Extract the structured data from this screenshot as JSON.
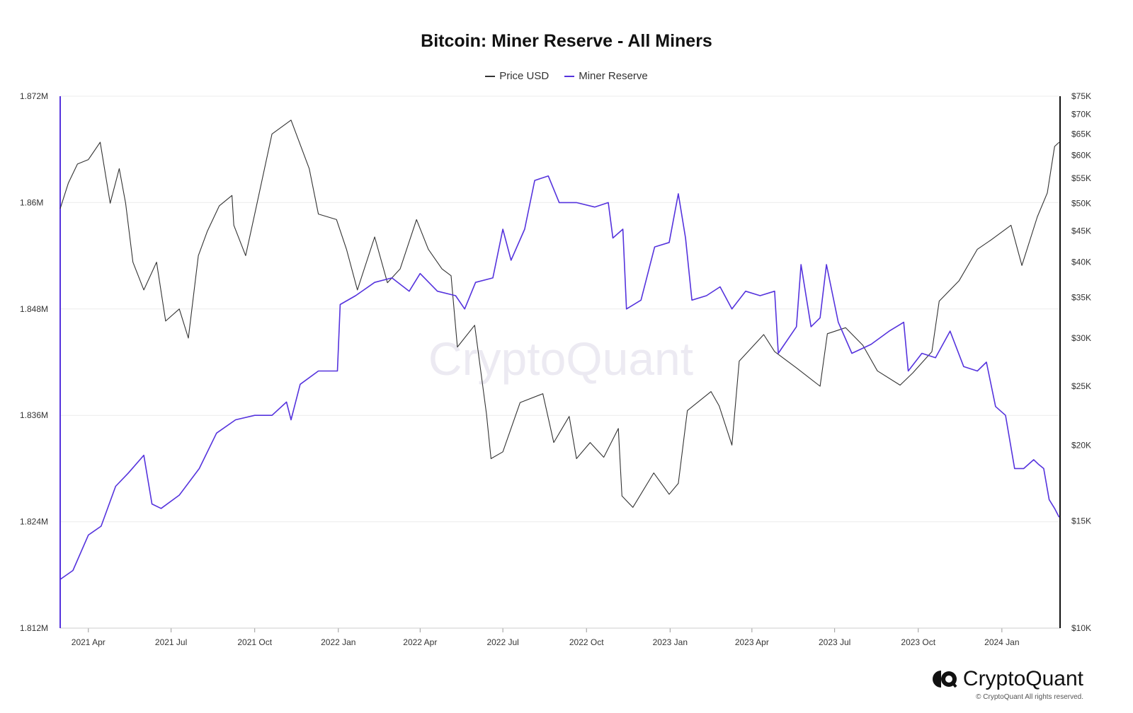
{
  "title": "Bitcoin: Miner Reserve - All Miners",
  "legend": [
    {
      "label": "Price USD",
      "color": "#333333"
    },
    {
      "label": "Miner Reserve",
      "color": "#5533dd"
    }
  ],
  "watermark": "CryptoQuant",
  "brand": {
    "name": "CryptoQuant",
    "copyright": "© CryptoQuant All rights reserved."
  },
  "chart_data": {
    "type": "line",
    "title": "Bitcoin: Miner Reserve - All Miners",
    "x_ticks": [
      "2021 Apr",
      "2021 Jul",
      "2021 Oct",
      "2022 Jan",
      "2022 Apr",
      "2022 Jul",
      "2022 Oct",
      "2023 Jan",
      "2023 Apr",
      "2023 Jul",
      "2023 Oct",
      "2024 Jan"
    ],
    "x_range": [
      "2021-03-01",
      "2024-03-05"
    ],
    "y_left": {
      "ticks": [
        "1.812M",
        "1.824M",
        "1.836M",
        "1.848M",
        "1.86M",
        "1.872M"
      ],
      "tick_values": [
        1812000,
        1824000,
        1836000,
        1848000,
        1860000,
        1872000
      ],
      "range": [
        1812000,
        1872000
      ],
      "scale": "linear"
    },
    "y_right": {
      "ticks": [
        "$10K",
        "$15K",
        "$20K",
        "$25K",
        "$30K",
        "$35K",
        "$40K",
        "$45K",
        "$50K",
        "$55K",
        "$60K",
        "$65K",
        "$70K",
        "$75K"
      ],
      "tick_values": [
        10000,
        15000,
        20000,
        25000,
        30000,
        35000,
        40000,
        45000,
        50000,
        55000,
        60000,
        65000,
        70000,
        75000
      ],
      "range": [
        10000,
        75000
      ],
      "scale": "log"
    },
    "grid": true,
    "legend_position": "top-center",
    "series": [
      {
        "name": "Price USD",
        "axis": "right",
        "color": "#333333",
        "points": [
          [
            "2021-03-01",
            49000
          ],
          [
            "2021-03-10",
            54000
          ],
          [
            "2021-03-20",
            58000
          ],
          [
            "2021-04-01",
            59000
          ],
          [
            "2021-04-14",
            63000
          ],
          [
            "2021-04-25",
            50000
          ],
          [
            "2021-05-05",
            57000
          ],
          [
            "2021-05-12",
            50000
          ],
          [
            "2021-05-20",
            40000
          ],
          [
            "2021-06-01",
            36000
          ],
          [
            "2021-06-15",
            40000
          ],
          [
            "2021-06-25",
            32000
          ],
          [
            "2021-07-10",
            33500
          ],
          [
            "2021-07-20",
            30000
          ],
          [
            "2021-07-31",
            41000
          ],
          [
            "2021-08-10",
            45000
          ],
          [
            "2021-08-23",
            49500
          ],
          [
            "2021-09-06",
            51500
          ],
          [
            "2021-09-08",
            46000
          ],
          [
            "2021-09-21",
            41000
          ],
          [
            "2021-10-01",
            48000
          ],
          [
            "2021-10-20",
            65000
          ],
          [
            "2021-11-10",
            68500
          ],
          [
            "2021-11-30",
            57000
          ],
          [
            "2021-12-10",
            48000
          ],
          [
            "2021-12-30",
            47000
          ],
          [
            "2022-01-10",
            42000
          ],
          [
            "2022-01-22",
            36000
          ],
          [
            "2022-02-10",
            44000
          ],
          [
            "2022-02-24",
            37000
          ],
          [
            "2022-03-10",
            39000
          ],
          [
            "2022-03-28",
            47000
          ],
          [
            "2022-04-10",
            42000
          ],
          [
            "2022-04-25",
            39000
          ],
          [
            "2022-05-05",
            38000
          ],
          [
            "2022-05-12",
            29000
          ],
          [
            "2022-05-31",
            31500
          ],
          [
            "2022-06-13",
            22500
          ],
          [
            "2022-06-18",
            19000
          ],
          [
            "2022-07-01",
            19500
          ],
          [
            "2022-07-20",
            23500
          ],
          [
            "2022-08-14",
            24300
          ],
          [
            "2022-08-26",
            20200
          ],
          [
            "2022-09-12",
            22300
          ],
          [
            "2022-09-20",
            19000
          ],
          [
            "2022-10-05",
            20200
          ],
          [
            "2022-10-20",
            19100
          ],
          [
            "2022-11-05",
            21300
          ],
          [
            "2022-11-09",
            16500
          ],
          [
            "2022-11-21",
            15800
          ],
          [
            "2022-12-14",
            18000
          ],
          [
            "2022-12-31",
            16600
          ],
          [
            "2023-01-10",
            17300
          ],
          [
            "2023-01-20",
            22800
          ],
          [
            "2023-02-15",
            24500
          ],
          [
            "2023-02-24",
            23200
          ],
          [
            "2023-03-10",
            20000
          ],
          [
            "2023-03-18",
            27500
          ],
          [
            "2023-04-14",
            30400
          ],
          [
            "2023-04-26",
            28500
          ],
          [
            "2023-05-20",
            26800
          ],
          [
            "2023-06-15",
            25000
          ],
          [
            "2023-06-23",
            30500
          ],
          [
            "2023-07-13",
            31200
          ],
          [
            "2023-08-01",
            29200
          ],
          [
            "2023-08-17",
            26500
          ],
          [
            "2023-09-11",
            25100
          ],
          [
            "2023-09-25",
            26300
          ],
          [
            "2023-10-16",
            28500
          ],
          [
            "2023-10-24",
            34500
          ],
          [
            "2023-11-15",
            37300
          ],
          [
            "2023-12-05",
            42000
          ],
          [
            "2023-12-20",
            43500
          ],
          [
            "2024-01-11",
            46000
          ],
          [
            "2024-01-23",
            39500
          ],
          [
            "2024-02-09",
            47500
          ],
          [
            "2024-02-20",
            52000
          ],
          [
            "2024-02-28",
            62000
          ],
          [
            "2024-03-04",
            63000
          ]
        ]
      },
      {
        "name": "Miner Reserve",
        "axis": "left",
        "color": "#5533dd",
        "points": [
          [
            "2021-03-01",
            1817500
          ],
          [
            "2021-03-15",
            1818500
          ],
          [
            "2021-04-01",
            1822500
          ],
          [
            "2021-04-15",
            1823500
          ],
          [
            "2021-05-01",
            1828000
          ],
          [
            "2021-05-15",
            1829500
          ],
          [
            "2021-06-01",
            1831500
          ],
          [
            "2021-06-10",
            1826000
          ],
          [
            "2021-06-20",
            1825500
          ],
          [
            "2021-07-10",
            1827000
          ],
          [
            "2021-08-01",
            1830000
          ],
          [
            "2021-08-20",
            1834000
          ],
          [
            "2021-09-10",
            1835500
          ],
          [
            "2021-10-01",
            1836000
          ],
          [
            "2021-10-20",
            1836000
          ],
          [
            "2021-11-05",
            1837500
          ],
          [
            "2021-11-10",
            1835500
          ],
          [
            "2021-11-20",
            1839500
          ],
          [
            "2021-12-10",
            1841000
          ],
          [
            "2021-12-31",
            1841000
          ],
          [
            "2022-01-03",
            1848500
          ],
          [
            "2022-01-20",
            1849500
          ],
          [
            "2022-02-10",
            1851000
          ],
          [
            "2022-03-01",
            1851500
          ],
          [
            "2022-03-20",
            1850000
          ],
          [
            "2022-04-01",
            1852000
          ],
          [
            "2022-04-20",
            1850000
          ],
          [
            "2022-05-10",
            1849500
          ],
          [
            "2022-05-20",
            1848000
          ],
          [
            "2022-06-01",
            1851000
          ],
          [
            "2022-06-20",
            1851500
          ],
          [
            "2022-07-01",
            1857000
          ],
          [
            "2022-07-10",
            1853500
          ],
          [
            "2022-07-25",
            1857000
          ],
          [
            "2022-08-05",
            1862500
          ],
          [
            "2022-08-20",
            1863000
          ],
          [
            "2022-09-01",
            1860000
          ],
          [
            "2022-09-20",
            1860000
          ],
          [
            "2022-10-10",
            1859500
          ],
          [
            "2022-10-25",
            1860000
          ],
          [
            "2022-10-30",
            1856000
          ],
          [
            "2022-11-10",
            1857000
          ],
          [
            "2022-11-14",
            1848000
          ],
          [
            "2022-11-30",
            1849000
          ],
          [
            "2022-12-15",
            1855000
          ],
          [
            "2022-12-31",
            1855500
          ],
          [
            "2023-01-10",
            1861000
          ],
          [
            "2023-01-18",
            1856000
          ],
          [
            "2023-01-25",
            1849000
          ],
          [
            "2023-02-10",
            1849500
          ],
          [
            "2023-02-25",
            1850500
          ],
          [
            "2023-03-10",
            1848000
          ],
          [
            "2023-03-25",
            1850000
          ],
          [
            "2023-04-10",
            1849500
          ],
          [
            "2023-04-26",
            1850000
          ],
          [
            "2023-04-30",
            1843000
          ],
          [
            "2023-05-20",
            1846000
          ],
          [
            "2023-05-25",
            1853000
          ],
          [
            "2023-06-05",
            1846000
          ],
          [
            "2023-06-15",
            1847000
          ],
          [
            "2023-06-22",
            1853000
          ],
          [
            "2023-07-05",
            1846500
          ],
          [
            "2023-07-20",
            1843000
          ],
          [
            "2023-08-10",
            1844000
          ],
          [
            "2023-08-30",
            1845500
          ],
          [
            "2023-09-15",
            1846500
          ],
          [
            "2023-09-20",
            1841000
          ],
          [
            "2023-10-05",
            1843000
          ],
          [
            "2023-10-20",
            1842500
          ],
          [
            "2023-11-05",
            1845500
          ],
          [
            "2023-11-20",
            1841500
          ],
          [
            "2023-12-05",
            1841000
          ],
          [
            "2023-12-15",
            1842000
          ],
          [
            "2023-12-25",
            1837000
          ],
          [
            "2024-01-05",
            1836000
          ],
          [
            "2024-01-15",
            1830000
          ],
          [
            "2024-01-25",
            1830000
          ],
          [
            "2024-02-05",
            1831000
          ],
          [
            "2024-02-10",
            1830500
          ],
          [
            "2024-02-16",
            1830000
          ],
          [
            "2024-02-22",
            1826500
          ],
          [
            "2024-02-28",
            1825500
          ],
          [
            "2024-03-04",
            1824500
          ]
        ]
      }
    ]
  }
}
